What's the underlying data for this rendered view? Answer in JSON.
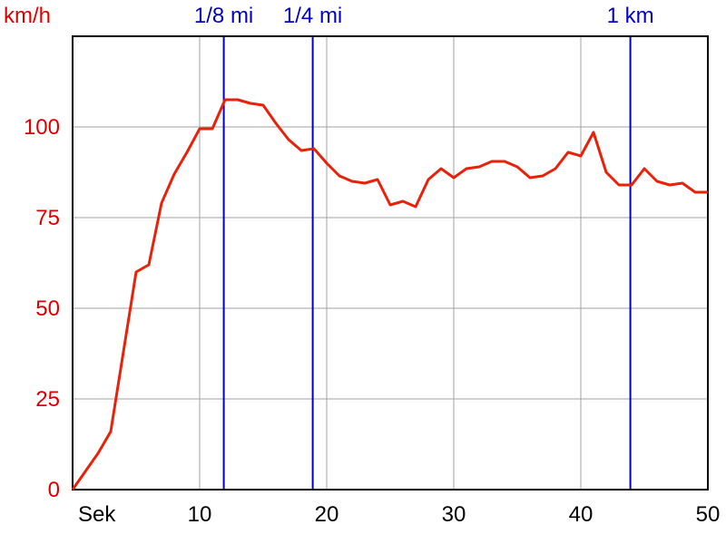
{
  "chart_data": {
    "type": "line",
    "ylabel": "km/h",
    "xlabel": "Sek",
    "xlim": [
      0,
      50
    ],
    "ylim": [
      0,
      125
    ],
    "x_ticks": [
      10,
      20,
      30,
      40,
      50
    ],
    "y_ticks": [
      0,
      25,
      50,
      75,
      100
    ],
    "grid": true,
    "series": [
      {
        "x": [
          0,
          1,
          2,
          3,
          4,
          5,
          6,
          7,
          8,
          9,
          10,
          11,
          12,
          13,
          14,
          15,
          16,
          17,
          18,
          19,
          20,
          21,
          22,
          23,
          24,
          25,
          26,
          27,
          28,
          29,
          30,
          31,
          32,
          33,
          34,
          35,
          36,
          37,
          38,
          39,
          40,
          41,
          42,
          43,
          44,
          45,
          46,
          47,
          48,
          49,
          50
        ],
        "values": [
          0,
          5,
          10,
          16,
          38,
          60,
          62,
          79,
          87,
          93,
          99.5,
          99.5,
          107.5,
          107.5,
          106.5,
          106,
          101,
          96.5,
          93.5,
          94,
          90,
          86.5,
          85,
          84.5,
          85.5,
          78.5,
          79.5,
          78,
          85.5,
          88.5,
          86,
          88.5,
          89,
          90.5,
          90.5,
          89,
          86,
          86.5,
          88.5,
          93,
          92,
          98.5,
          87.5,
          84,
          84,
          88.5,
          85,
          84,
          84.5,
          82,
          82
        ]
      }
    ],
    "markers": [
      {
        "label": "1/8 mi",
        "x": 11.9
      },
      {
        "label": "1/4 mi",
        "x": 18.9
      },
      {
        "label": "1 km",
        "x": 43.9
      }
    ],
    "colors": {
      "line": "#e8220a",
      "marker": "#0000cc",
      "grid": "#a0a0a0",
      "ytick": "#dd0000",
      "xtick": "#000000"
    }
  }
}
